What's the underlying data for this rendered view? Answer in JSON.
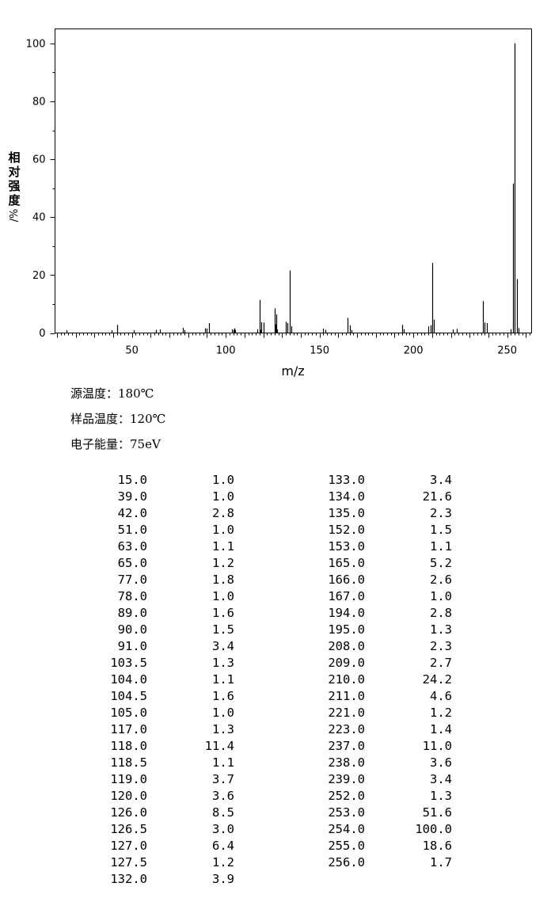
{
  "chart_data": {
    "type": "bar",
    "xlabel": "m/z",
    "ylabel": "相对强度/%",
    "xlim": [
      9,
      263
    ],
    "ylim": [
      0,
      105
    ],
    "x_ticks": [
      50,
      100,
      150,
      200,
      250
    ],
    "y_ticks": [
      0,
      20,
      40,
      60,
      80,
      100
    ],
    "peaks": [
      [
        15.0,
        1.0
      ],
      [
        39.0,
        1.0
      ],
      [
        42.0,
        2.8
      ],
      [
        51.0,
        1.0
      ],
      [
        63.0,
        1.1
      ],
      [
        65.0,
        1.2
      ],
      [
        77.0,
        1.8
      ],
      [
        78.0,
        1.0
      ],
      [
        89.0,
        1.6
      ],
      [
        90.0,
        1.5
      ],
      [
        91.0,
        3.4
      ],
      [
        103.5,
        1.3
      ],
      [
        104.0,
        1.1
      ],
      [
        104.5,
        1.6
      ],
      [
        105.0,
        1.0
      ],
      [
        117.0,
        1.3
      ],
      [
        118.0,
        11.4
      ],
      [
        118.5,
        1.1
      ],
      [
        119.0,
        3.7
      ],
      [
        120.0,
        3.6
      ],
      [
        126.0,
        8.5
      ],
      [
        126.5,
        3.0
      ],
      [
        127.0,
        6.4
      ],
      [
        127.5,
        1.2
      ],
      [
        132.0,
        3.9
      ],
      [
        133.0,
        3.4
      ],
      [
        134.0,
        21.6
      ],
      [
        135.0,
        2.3
      ],
      [
        152.0,
        1.5
      ],
      [
        153.0,
        1.1
      ],
      [
        165.0,
        5.2
      ],
      [
        166.0,
        2.6
      ],
      [
        167.0,
        1.0
      ],
      [
        194.0,
        2.8
      ],
      [
        195.0,
        1.3
      ],
      [
        208.0,
        2.3
      ],
      [
        209.0,
        2.7
      ],
      [
        210.0,
        24.2
      ],
      [
        211.0,
        4.6
      ],
      [
        221.0,
        1.2
      ],
      [
        223.0,
        1.4
      ],
      [
        237.0,
        11.0
      ],
      [
        238.0,
        3.6
      ],
      [
        239.0,
        3.4
      ],
      [
        252.0,
        1.3
      ],
      [
        253.0,
        51.6
      ],
      [
        254.0,
        100.0
      ],
      [
        255.0,
        18.6
      ],
      [
        256.0,
        1.7
      ]
    ]
  },
  "conditions": {
    "source_temp": "源温度：180℃",
    "sample_temp": "样品温度：120℃",
    "electron_energy": "电子能量：75eV"
  },
  "table": {
    "left": [
      [
        "15.0",
        "1.0"
      ],
      [
        "39.0",
        "1.0"
      ],
      [
        "42.0",
        "2.8"
      ],
      [
        "51.0",
        "1.0"
      ],
      [
        "63.0",
        "1.1"
      ],
      [
        "65.0",
        "1.2"
      ],
      [
        "77.0",
        "1.8"
      ],
      [
        "78.0",
        "1.0"
      ],
      [
        "89.0",
        "1.6"
      ],
      [
        "90.0",
        "1.5"
      ],
      [
        "91.0",
        "3.4"
      ],
      [
        "103.5",
        "1.3"
      ],
      [
        "104.0",
        "1.1"
      ],
      [
        "104.5",
        "1.6"
      ],
      [
        "105.0",
        "1.0"
      ],
      [
        "117.0",
        "1.3"
      ],
      [
        "118.0",
        "11.4"
      ],
      [
        "118.5",
        "1.1"
      ],
      [
        "119.0",
        "3.7"
      ],
      [
        "120.0",
        "3.6"
      ],
      [
        "126.0",
        "8.5"
      ],
      [
        "126.5",
        "3.0"
      ],
      [
        "127.0",
        "6.4"
      ],
      [
        "127.5",
        "1.2"
      ],
      [
        "132.0",
        "3.9"
      ]
    ],
    "right": [
      [
        "133.0",
        "3.4"
      ],
      [
        "134.0",
        "21.6"
      ],
      [
        "135.0",
        "2.3"
      ],
      [
        "152.0",
        "1.5"
      ],
      [
        "153.0",
        "1.1"
      ],
      [
        "165.0",
        "5.2"
      ],
      [
        "166.0",
        "2.6"
      ],
      [
        "167.0",
        "1.0"
      ],
      [
        "194.0",
        "2.8"
      ],
      [
        "195.0",
        "1.3"
      ],
      [
        "208.0",
        "2.3"
      ],
      [
        "209.0",
        "2.7"
      ],
      [
        "210.0",
        "24.2"
      ],
      [
        "211.0",
        "4.6"
      ],
      [
        "221.0",
        "1.2"
      ],
      [
        "223.0",
        "1.4"
      ],
      [
        "237.0",
        "11.0"
      ],
      [
        "238.0",
        "3.6"
      ],
      [
        "239.0",
        "3.4"
      ],
      [
        "252.0",
        "1.3"
      ],
      [
        "253.0",
        "51.6"
      ],
      [
        "254.0",
        "100.0"
      ],
      [
        "255.0",
        "18.6"
      ],
      [
        "256.0",
        "1.7"
      ]
    ]
  }
}
